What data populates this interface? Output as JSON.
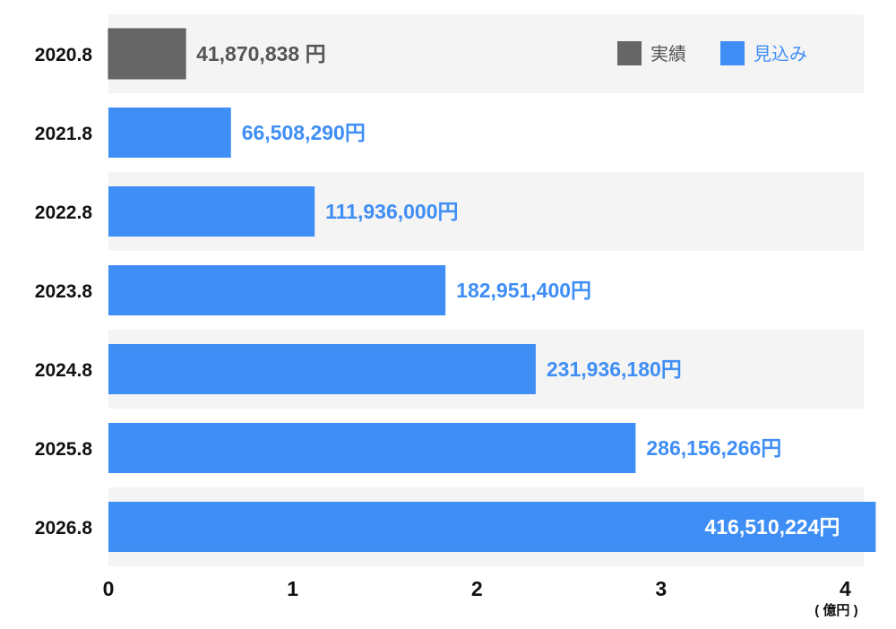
{
  "chart_data": {
    "type": "bar",
    "orientation": "horizontal",
    "categories": [
      "2020.8",
      "2021.8",
      "2022.8",
      "2023.8",
      "2024.8",
      "2025.8",
      "2026.8"
    ],
    "values": [
      41870838,
      66508290,
      111936000,
      182951400,
      231936180,
      286156266,
      416510224
    ],
    "value_labels": [
      "41,870,838 円",
      "66,508,290円",
      "111,936,000円",
      "182,951,400円",
      "231,936,180円",
      "286,156,266円",
      "416,510,224円"
    ],
    "series_kind": [
      "actual",
      "forecast",
      "forecast",
      "forecast",
      "forecast",
      "forecast",
      "forecast"
    ],
    "x_ticks": [
      "0",
      "1",
      "2",
      "3",
      "4"
    ],
    "xlim": [
      0,
      4.1
    ],
    "value_unit_divisor": 100000000,
    "x_unit_label": "( 億円 )",
    "legend": {
      "position": "top-right",
      "items": [
        {
          "key": "actual",
          "label": "実績",
          "color": "#666666"
        },
        {
          "key": "forecast",
          "label": "見込み",
          "color": "#3f8ef5"
        }
      ]
    },
    "colors": {
      "actual": "#666666",
      "forecast": "#3f8ef5",
      "row_band": "#f4f4f4",
      "actual_label": "#555555",
      "forecast_label": "#3f8ef5",
      "inside_label": "#ffffff"
    },
    "grid": false,
    "title": "",
    "xlabel": "",
    "ylabel": ""
  }
}
